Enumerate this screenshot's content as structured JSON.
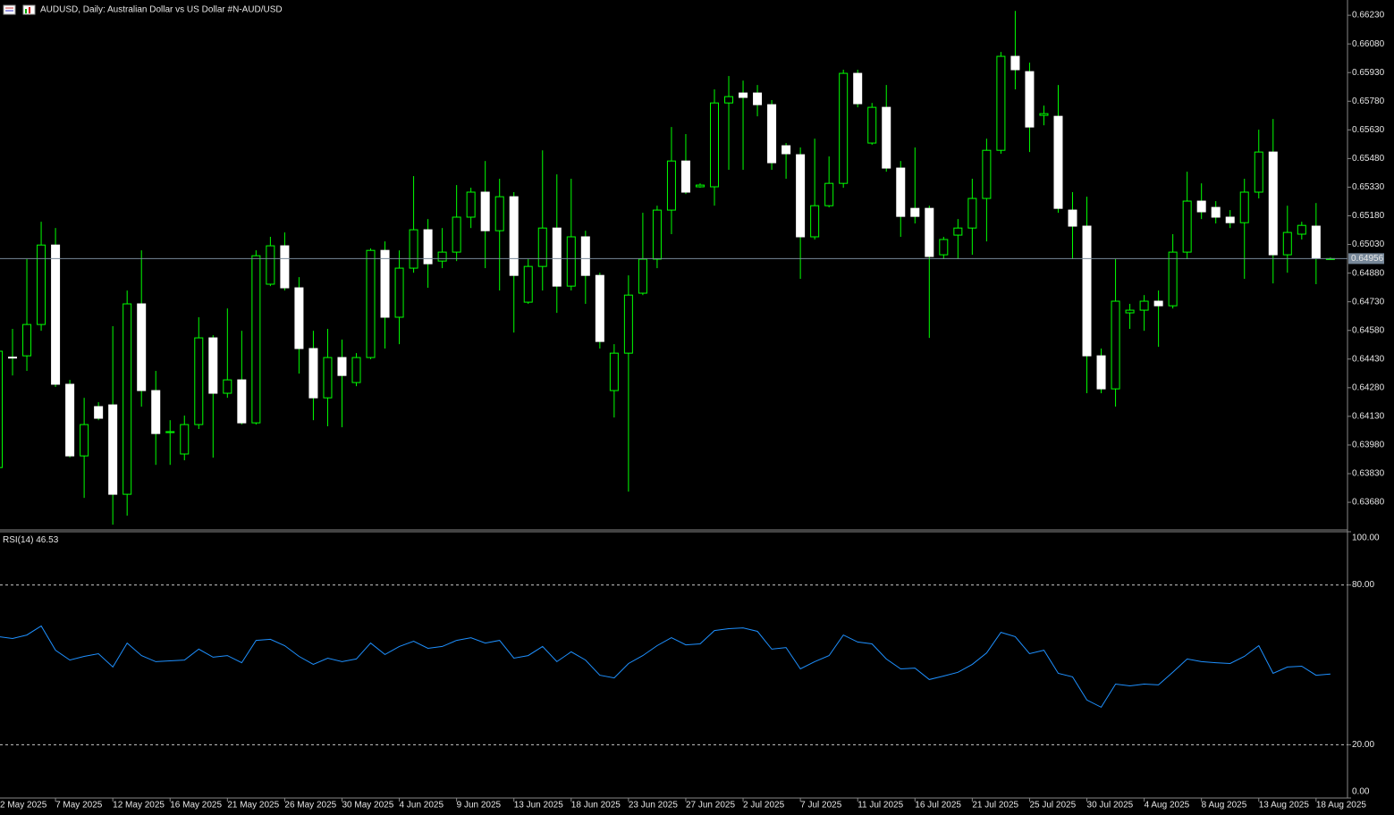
{
  "header": "AUDUSD, Daily:  Australian Dollar vs US Dollar #N-AUD/USD",
  "chart_data": [
    {
      "type": "candlestick",
      "categories": [
        "2 May 2025",
        null,
        null,
        null,
        "7 May 2025",
        null,
        null,
        null,
        "12 May 2025",
        null,
        null,
        null,
        "16 May 2025",
        null,
        null,
        null,
        "21 May 2025",
        null,
        null,
        null,
        "26 May 2025",
        null,
        null,
        null,
        "30 May 2025",
        null,
        null,
        null,
        "4 Jun 2025",
        null,
        null,
        null,
        "9 Jun 2025",
        null,
        null,
        null,
        "13 Jun 2025",
        null,
        null,
        null,
        "18 Jun 2025",
        null,
        null,
        null,
        "23 Jun 2025",
        null,
        null,
        null,
        "27 Jun 2025",
        null,
        null,
        null,
        "2 Jul 2025",
        null,
        null,
        null,
        "7 Jul 2025",
        null,
        null,
        null,
        "11 Jul 2025",
        null,
        null,
        null,
        "16 Jul 2025",
        null,
        null,
        null,
        "21 Jul 2025",
        null,
        null,
        null,
        "25 Jul 2025",
        null,
        null,
        null,
        "30 Jul 2025",
        null,
        null,
        null,
        "4 Aug 2025",
        null,
        null,
        null,
        "8 Aug 2025",
        null,
        null,
        null,
        "13 Aug 2025",
        null,
        null,
        null,
        "18 Aug 2025",
        null
      ],
      "open": [
        0.63862,
        0.6444,
        0.64447,
        0.64611,
        0.65027,
        0.64298,
        0.63923,
        0.64181,
        0.6419,
        0.63722,
        0.64719,
        0.64265,
        0.64045,
        0.63933,
        0.64087,
        0.64541,
        0.64251,
        0.64321,
        0.64096,
        0.64822,
        0.65023,
        0.64803,
        0.64485,
        0.64227,
        0.64438,
        0.64307,
        0.64438,
        0.64999,
        0.64649,
        0.64906,
        0.65107,
        0.64943,
        0.6499,
        0.65173,
        0.65304,
        0.65102,
        0.6528,
        0.64728,
        0.64915,
        0.65116,
        0.64812,
        0.6507,
        0.64868,
        0.64265,
        0.64461,
        0.64775,
        0.64953,
        0.6521,
        0.65467,
        0.65332,
        0.65332,
        0.65771,
        0.65823,
        0.65823,
        0.65762,
        0.65547,
        0.655,
        0.6507,
        0.65233,
        0.6535,
        0.65926,
        0.65561,
        0.65748,
        0.6543,
        0.65219,
        0.65219,
        0.64976,
        0.65079,
        0.65116,
        0.65271,
        0.65523,
        0.66015,
        0.65935,
        0.65706,
        0.65701,
        0.6521,
        0.65126,
        0.64447,
        0.64274,
        0.64672,
        0.64686,
        0.64733,
        0.64709,
        0.6499,
        0.65257,
        0.65224,
        0.65173,
        0.65144,
        0.65304,
        0.65514,
        0.64976,
        0.65084,
        0.65126,
        0.64956
      ],
      "high": [
        0.64532,
        0.64588,
        0.64953,
        0.65149,
        0.65116,
        0.64321,
        0.64227,
        0.64204,
        0.64602,
        0.64789,
        0.64999,
        0.64368,
        0.6411,
        0.64134,
        0.64649,
        0.64555,
        0.64695,
        0.64578,
        0.64999,
        0.6507,
        0.65093,
        0.64859,
        0.64578,
        0.64588,
        0.64532,
        0.64461,
        0.65009,
        0.65046,
        0.64999,
        0.65388,
        0.65163,
        0.65116,
        0.65341,
        0.65327,
        0.65467,
        0.65374,
        0.65304,
        0.64953,
        0.65523,
        0.65397,
        0.65374,
        0.65102,
        0.64882,
        0.64508,
        0.64868,
        0.65196,
        0.65233,
        0.65645,
        0.65608,
        0.6535,
        0.65842,
        0.65912,
        0.65888,
        0.65865,
        0.65786,
        0.65561,
        0.65538,
        0.65584,
        0.65491,
        0.65945,
        0.65945,
        0.65771,
        0.65865,
        0.65467,
        0.65538,
        0.65233,
        0.6507,
        0.65163,
        0.65374,
        0.65584,
        0.66038,
        0.66253,
        0.65982,
        0.65757,
        0.65865,
        0.65304,
        0.6528,
        0.64485,
        0.64953,
        0.64719,
        0.64765,
        0.64789,
        0.65084,
        0.65411,
        0.6535,
        0.65257,
        0.6521,
        0.65374,
        0.65631,
        0.65687,
        0.65233,
        0.65149,
        0.65247,
        0.64962
      ],
      "low": [
        0.6383,
        0.64344,
        0.64368,
        0.64578,
        0.64284,
        0.63914,
        0.63703,
        0.6411,
        0.63563,
        0.6361,
        0.64181,
        0.63876,
        0.63876,
        0.639,
        0.64064,
        0.63914,
        0.64227,
        0.64087,
        0.64087,
        0.64812,
        0.64789,
        0.64354,
        0.6411,
        0.64078,
        0.64073,
        0.64288,
        0.64429,
        0.64485,
        0.64508,
        0.64882,
        0.64803,
        0.64906,
        0.64943,
        0.65116,
        0.64906,
        0.64789,
        0.64569,
        0.64719,
        0.64789,
        0.64672,
        0.64789,
        0.64719,
        0.64485,
        0.64124,
        0.63736,
        0.64765,
        0.64906,
        0.65084,
        0.65294,
        0.65327,
        0.65233,
        0.65421,
        0.65421,
        0.65701,
        0.65421,
        0.65374,
        0.6485,
        0.65056,
        0.65224,
        0.65327,
        0.65748,
        0.65552,
        0.65411,
        0.6507,
        0.6514,
        0.64541,
        0.64953,
        0.64953,
        0.64976,
        0.65046,
        0.65505,
        0.65842,
        0.65514,
        0.65654,
        0.65196,
        0.64953,
        0.64251,
        0.64251,
        0.64181,
        0.64588,
        0.64578,
        0.64494,
        0.64695,
        0.64953,
        0.65163,
        0.6514,
        0.65116,
        0.6485,
        0.65271,
        0.64826,
        0.64882,
        0.65056,
        0.64822,
        0.6495
      ],
      "close": [
        0.64471,
        0.64438,
        0.64611,
        0.65027,
        0.64298,
        0.63923,
        0.64087,
        0.6412,
        0.63722,
        0.64719,
        0.64265,
        0.6404,
        0.6405,
        0.64087,
        0.64541,
        0.64251,
        0.64321,
        0.64096,
        0.64971,
        0.65023,
        0.64803,
        0.64485,
        0.64227,
        0.64438,
        0.64344,
        0.64438,
        0.64999,
        0.64649,
        0.64906,
        0.65107,
        0.64929,
        0.6499,
        0.65173,
        0.65304,
        0.65102,
        0.6528,
        0.64868,
        0.64915,
        0.65116,
        0.64812,
        0.6507,
        0.64868,
        0.64522,
        0.64461,
        0.64765,
        0.64953,
        0.6521,
        0.65467,
        0.65304,
        0.65341,
        0.65771,
        0.65804,
        0.658,
        0.65762,
        0.65458,
        0.65505,
        0.6507,
        0.65233,
        0.6535,
        0.65926,
        0.65767,
        0.65748,
        0.6543,
        0.65177,
        0.65177,
        0.64967,
        0.65056,
        0.65116,
        0.65271,
        0.65523,
        0.66015,
        0.65945,
        0.65645,
        0.65715,
        0.65219,
        0.65126,
        0.64447,
        0.64274,
        0.64733,
        0.64686,
        0.64733,
        0.64709,
        0.6499,
        0.65257,
        0.65201,
        0.65173,
        0.65144,
        0.65304,
        0.65514,
        0.64976,
        0.65093,
        0.6513,
        0.64956,
        0.64956
      ],
      "bull_fill": "#000000",
      "bear_fill": "#ffffff",
      "wick_color": "#00ff00",
      "price_line_color": "#778899",
      "ylim": [
        0.6354,
        0.6631
      ],
      "yticks": [
        {
          "value": 0.6623,
          "label": "0.66230"
        },
        {
          "value": 0.6608,
          "label": "0.66080"
        },
        {
          "value": 0.6593,
          "label": "0.65930"
        },
        {
          "value": 0.6578,
          "label": "0.65780"
        },
        {
          "value": 0.6563,
          "label": "0.65630"
        },
        {
          "value": 0.6548,
          "label": "0.65480"
        },
        {
          "value": 0.6533,
          "label": "0.65330"
        },
        {
          "value": 0.6518,
          "label": "0.65180"
        },
        {
          "value": 0.6503,
          "label": "0.65030"
        },
        {
          "value": 0.6488,
          "label": "0.64880"
        },
        {
          "value": 0.6473,
          "label": "0.64730"
        },
        {
          "value": 0.6458,
          "label": "0.64580"
        },
        {
          "value": 0.6443,
          "label": "0.64430"
        },
        {
          "value": 0.6428,
          "label": "0.64280"
        },
        {
          "value": 0.6413,
          "label": "0.64130"
        },
        {
          "value": 0.6398,
          "label": "0.63980"
        },
        {
          "value": 0.6383,
          "label": "0.63830"
        },
        {
          "value": 0.6368,
          "label": "0.63680"
        }
      ]
    },
    {
      "type": "line",
      "title": "RSI(14)",
      "color": "#1e90ff",
      "values": [
        60.6,
        59.9,
        61.2,
        64.6,
        55.5,
        51.8,
        53.2,
        54.2,
        49.2,
        58.2,
        53.5,
        51.2,
        51.5,
        51.8,
        55.9,
        52.9,
        53.5,
        50.8,
        59.2,
        59.6,
        57.2,
        53.2,
        50.2,
        52.5,
        51.2,
        52.2,
        58.2,
        53.9,
        56.9,
        58.9,
        56.2,
        56.9,
        59.2,
        60.2,
        58.2,
        59.2,
        52.5,
        53.5,
        56.9,
        51.2,
        54.9,
        51.8,
        46.1,
        45.1,
        50.5,
        53.5,
        57.2,
        60.2,
        57.5,
        57.9,
        62.9,
        63.6,
        63.9,
        62.6,
        55.9,
        56.5,
        48.5,
        51.2,
        53.5,
        61.2,
        58.6,
        57.9,
        52.2,
        48.5,
        48.8,
        44.5,
        45.8,
        47.2,
        50.2,
        54.5,
        62.2,
        60.6,
        54.2,
        55.5,
        46.8,
        45.5,
        36.8,
        34.1,
        42.8,
        42.1,
        42.8,
        42.5,
        47.2,
        52.2,
        51.2,
        50.8,
        50.5,
        53.2,
        57.2,
        46.8,
        49.2,
        49.5,
        46.1,
        46.53
      ],
      "ylim": [
        0,
        100
      ],
      "yticks": [
        {
          "value": 100,
          "label": "100.00"
        },
        {
          "value": 80,
          "label": "80.00"
        },
        {
          "value": 20,
          "label": "20.00"
        },
        {
          "value": 0,
          "label": "0.00"
        }
      ]
    }
  ]
}
